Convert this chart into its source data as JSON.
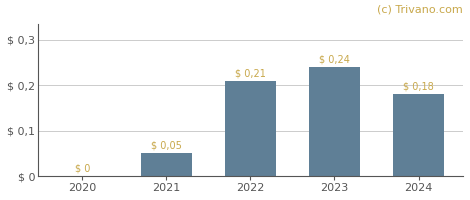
{
  "categories": [
    "2020",
    "2021",
    "2022",
    "2023",
    "2024"
  ],
  "values": [
    0.0,
    0.05,
    0.21,
    0.24,
    0.18
  ],
  "labels": [
    "$ 0",
    "$ 0,05",
    "$ 0,21",
    "$ 0,24",
    "$ 0,18"
  ],
  "bar_color": "#5f7f96",
  "background_color": "#ffffff",
  "grid_color": "#cccccc",
  "yticks": [
    0.0,
    0.1,
    0.2,
    0.3
  ],
  "ytick_labels": [
    "$ 0",
    "$ 0,1",
    "$ 0,2",
    "$ 0,3"
  ],
  "ylim": [
    0,
    0.335
  ],
  "watermark": "(c) Trivano.com",
  "watermark_color": "#c8a84b",
  "label_color": "#c8a84b",
  "label_fontsize": 7.0,
  "tick_fontsize": 8.0,
  "watermark_fontsize": 8.0,
  "axis_color": "#555555"
}
